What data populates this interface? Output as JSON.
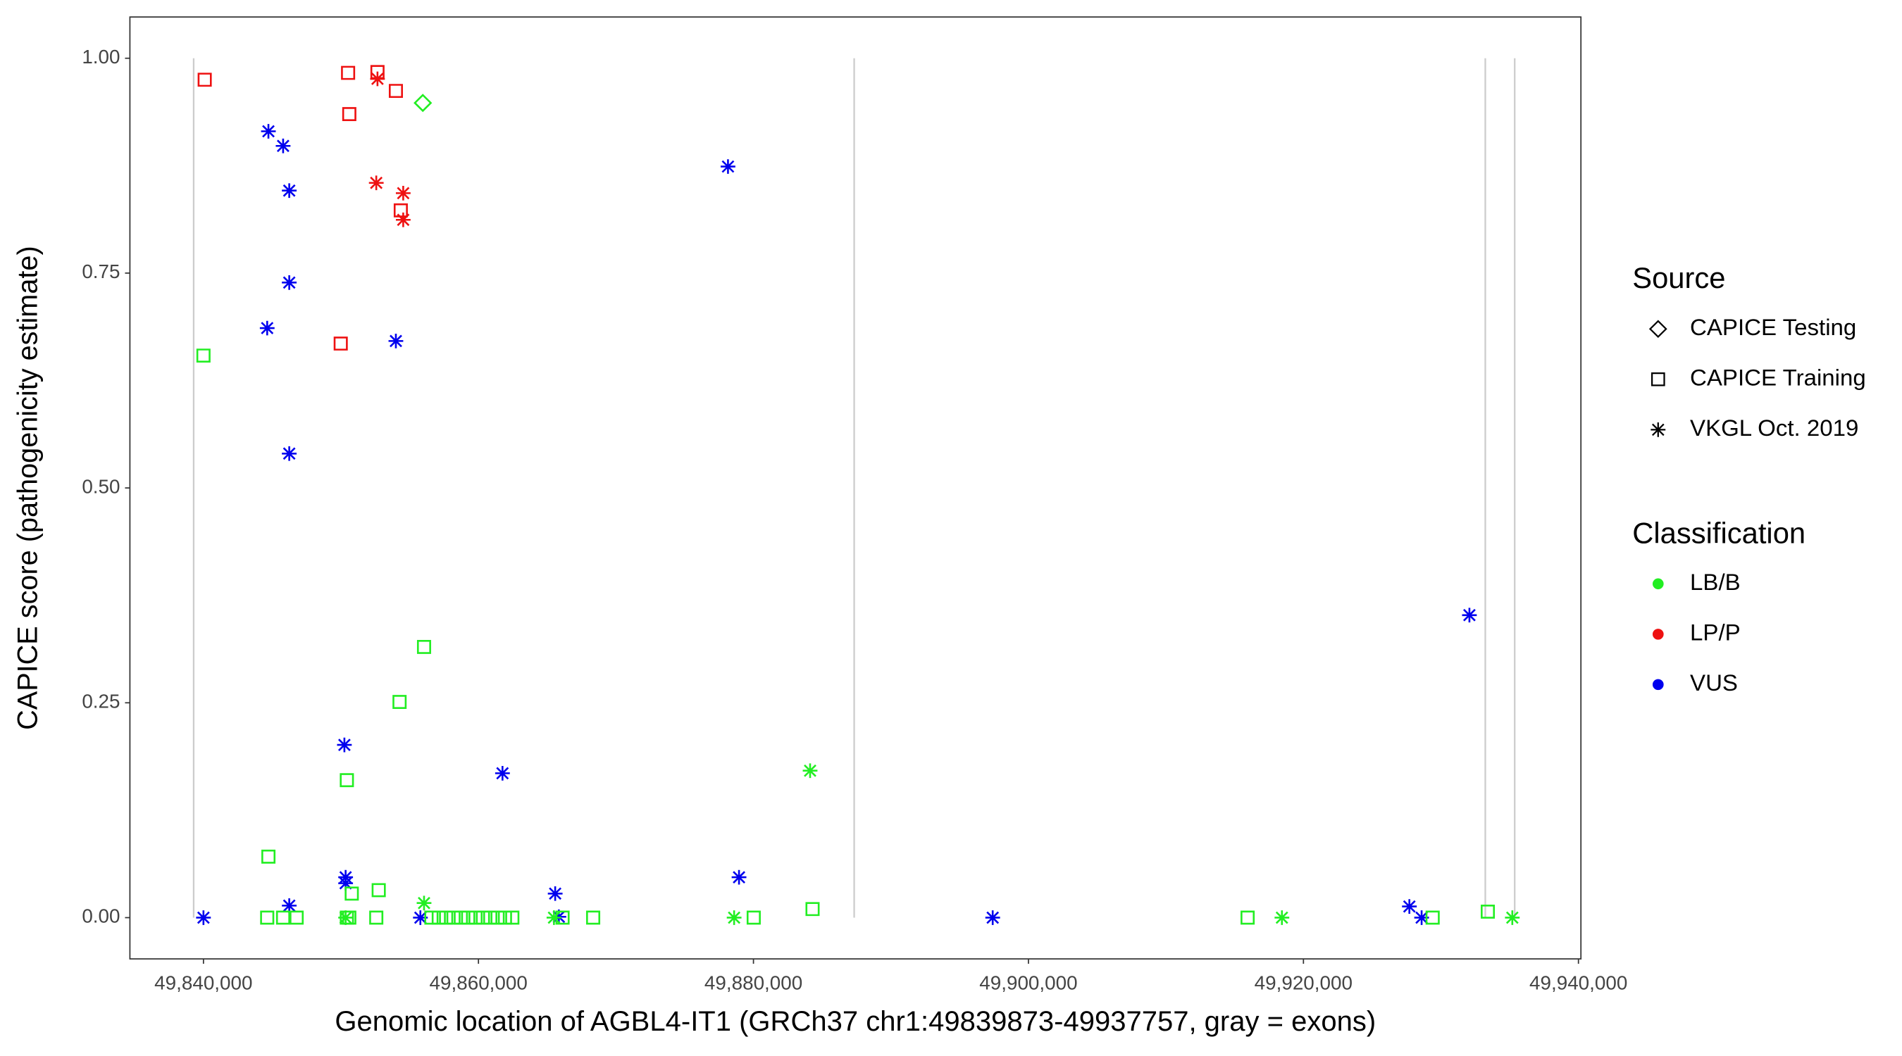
{
  "chart_data": {
    "type": "scatter",
    "x_label": "Genomic location of AGBL4-IT1 (GRCh37 chr1:49839873-49937757, gray = exons)",
    "y_label": "CAPICE score (pathogenicity estimate)",
    "xlim": [
      49834650,
      49940180
    ],
    "ylim": [
      -0.048,
      1.048
    ],
    "xticks": [
      {
        "value": 49840000,
        "label": "49,840,000"
      },
      {
        "value": 49860000,
        "label": "49,860,000"
      },
      {
        "value": 49880000,
        "label": "49,880,000"
      },
      {
        "value": 49900000,
        "label": "49,900,000"
      },
      {
        "value": 49920000,
        "label": "49,920,000"
      },
      {
        "value": 49940000,
        "label": "49,940,000"
      }
    ],
    "yticks": [
      {
        "value": 0,
        "label": "0.00"
      },
      {
        "value": 0.25,
        "label": "0.25"
      },
      {
        "value": 0.5,
        "label": "0.50"
      },
      {
        "value": 0.75,
        "label": "0.75"
      },
      {
        "value": 1,
        "label": "1.00"
      }
    ],
    "exons": [
      49839287,
      49887326,
      49933226,
      49935365
    ],
    "exon_color": "#cccccc",
    "legends": [
      {
        "title": "Source",
        "items": [
          {
            "label": "CAPICE Testing",
            "shape": "diamond"
          },
          {
            "label": "CAPICE Training",
            "shape": "square"
          },
          {
            "label": "VKGL Oct. 2019",
            "shape": "asterisk"
          }
        ]
      },
      {
        "title": "Classification",
        "items": [
          {
            "label": "LB/B",
            "color": "#22ee22"
          },
          {
            "label": "LP/P",
            "color": "#ee1111"
          },
          {
            "label": "VUS",
            "color": "#0000ee"
          }
        ]
      }
    ],
    "series": [
      {
        "source": "CAPICE Training",
        "classification": "LP/P",
        "shape": "square",
        "color": "#ee1111",
        "x": [
          49840090,
          49850518,
          49850606,
          49852656,
          49853994,
          49849983,
          49854350
        ],
        "y": [
          0.975,
          0.983,
          0.935,
          0.984,
          0.962,
          0.668,
          0.823
        ]
      },
      {
        "source": "VKGL Oct. 2019",
        "classification": "LP/P",
        "shape": "asterisk",
        "color": "#ee1111",
        "x": [
          49852656,
          49852568,
          49854528,
          49854528
        ],
        "y": [
          0.976,
          0.855,
          0.843,
          0.812
        ]
      },
      {
        "source": "CAPICE Testing",
        "classification": "LB/B",
        "shape": "diamond",
        "color": "#22ee22",
        "x": [
          49855954
        ],
        "y": [
          0.948
        ]
      },
      {
        "source": "VKGL Oct. 2019",
        "classification": "VUS",
        "shape": "asterisk",
        "color": "#0000ee",
        "x": [
          49844724,
          49845793,
          49846239,
          49846239,
          49844635,
          49846239,
          49853994,
          49878148,
          49850250,
          49861748,
          49850339,
          49850339,
          49846239,
          49840000,
          49855776,
          49865580,
          49865848,
          49878950,
          49897400,
          49927704,
          49928595,
          49932071
        ],
        "y": [
          0.915,
          0.898,
          0.846,
          0.739,
          0.686,
          0.54,
          0.671,
          0.874,
          0.201,
          0.168,
          0.047,
          0.04,
          0.014,
          0,
          0,
          0.028,
          0.001,
          0.047,
          0,
          0.013,
          0,
          0.352
        ]
      },
      {
        "source": "CAPICE Training",
        "classification": "LB/B",
        "shape": "square",
        "color": "#22ee22",
        "x": [
          49840000,
          49856043,
          49854261,
          49850428,
          49844724,
          49852746,
          49850785,
          49844635,
          49845793,
          49846774,
          49850428,
          49850606,
          49852568,
          49856578,
          49857113,
          49857648,
          49858183,
          49858718,
          49859253,
          49859788,
          49860323,
          49860858,
          49861393,
          49861928,
          49862463,
          49866115,
          49868343,
          49880019,
          49884298,
          49915939,
          49929397,
          49933408
        ],
        "y": [
          0.654,
          0.315,
          0.251,
          0.16,
          0.071,
          0.032,
          0.028,
          0,
          0,
          0,
          0,
          0,
          0,
          0,
          0,
          0,
          0,
          0,
          0,
          0,
          0,
          0,
          0,
          0,
          0,
          0,
          0,
          0,
          0.01,
          0,
          0,
          0.007
        ]
      },
      {
        "source": "VKGL Oct. 2019",
        "classification": "LB/B",
        "shape": "asterisk",
        "color": "#22ee22",
        "x": [
          49884120,
          49856043,
          49878594,
          49918435,
          49935191,
          49865491,
          49850339
        ],
        "y": [
          0.171,
          0.017,
          0,
          0,
          0,
          0,
          0
        ]
      }
    ]
  }
}
